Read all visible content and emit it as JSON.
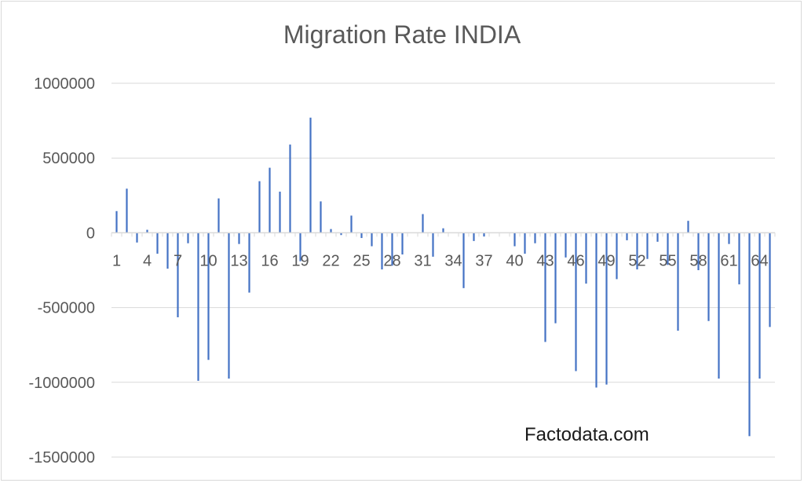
{
  "chart_data": {
    "type": "bar",
    "title": "Migration Rate INDIA",
    "xlabel": "",
    "ylabel": "",
    "ylim": [
      -1500000,
      1000000
    ],
    "yticks": [
      1000000,
      500000,
      0,
      -500000,
      -1000000,
      -1500000
    ],
    "ytick_labels": [
      "1000000",
      "500000",
      "0",
      "-500000",
      "-1000000",
      "-1500000"
    ],
    "xtick_labels": [
      "1",
      "4",
      "7",
      "10",
      "13",
      "16",
      "19",
      "22",
      "25",
      "28",
      "31",
      "34",
      "37",
      "40",
      "43",
      "46",
      "49",
      "52",
      "55",
      "58",
      "61",
      "64"
    ],
    "grid": true,
    "bar_color": "#4472c4",
    "categories": [
      1,
      2,
      3,
      4,
      5,
      6,
      7,
      8,
      9,
      10,
      11,
      12,
      13,
      14,
      15,
      16,
      17,
      18,
      19,
      20,
      21,
      22,
      23,
      24,
      25,
      26,
      27,
      28,
      29,
      30,
      31,
      32,
      33,
      34,
      35,
      36,
      37,
      38,
      39,
      40,
      41,
      42,
      43,
      44,
      45,
      46,
      47,
      48,
      49,
      50,
      51,
      52,
      53,
      54,
      55,
      56,
      57,
      58,
      59,
      60,
      61,
      62,
      63,
      64,
      65
    ],
    "values": [
      145000,
      295000,
      -65000,
      20000,
      -140000,
      -240000,
      -565000,
      -70000,
      -990000,
      -850000,
      230000,
      -975000,
      -75000,
      -400000,
      345000,
      435000,
      275000,
      590000,
      -190000,
      770000,
      210000,
      25000,
      -15000,
      115000,
      -35000,
      -90000,
      -245000,
      -220000,
      -145000,
      0,
      125000,
      -160000,
      30000,
      0,
      -370000,
      -55000,
      -25000,
      0,
      0,
      -90000,
      -140000,
      -70000,
      -730000,
      -605000,
      -165000,
      -925000,
      -340000,
      -1035000,
      -1015000,
      -310000,
      -50000,
      -245000,
      -175000,
      -60000,
      -215000,
      -655000,
      80000,
      -250000,
      -590000,
      -975000,
      -75000,
      -345000,
      -1360000,
      -975000,
      -630000
    ]
  },
  "watermark": "Factodata.com"
}
